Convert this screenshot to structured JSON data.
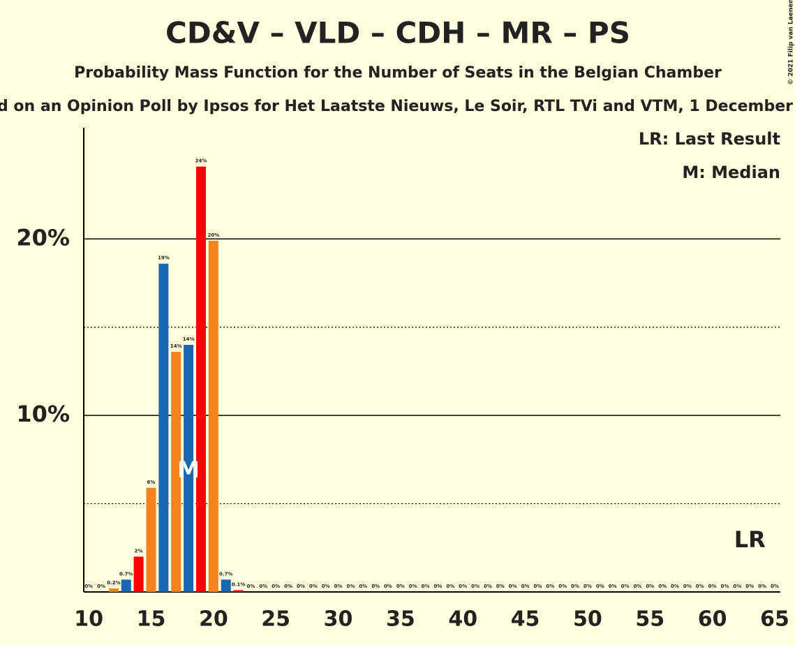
{
  "chart_data": {
    "type": "bar",
    "title": "CD&V – VLD – CDH – MR – PS",
    "subtitle": "Probability Mass Function for the Number of Seats in the Belgian Chamber",
    "source_line": "d on an Opinion Poll by Ipsos for Het Laatste Nieuws, Le Soir, RTL TVi and VTM, 1 December",
    "copyright": "© 2021 Filip van Laenen",
    "legend": [
      "LR: Last Result",
      "M: Median"
    ],
    "x": [
      10,
      11,
      12,
      13,
      14,
      15,
      16,
      17,
      18,
      19,
      20,
      21,
      22,
      23,
      24,
      25,
      26,
      27,
      28,
      29,
      30,
      31,
      32,
      33,
      34,
      35,
      36,
      37,
      38,
      39,
      40,
      41,
      42,
      43,
      44,
      45,
      46,
      47,
      48,
      49,
      50,
      51,
      52,
      53,
      54,
      55,
      56,
      57,
      58,
      59,
      60,
      61,
      62,
      63,
      64,
      65
    ],
    "values": [
      0,
      0,
      0.2,
      0.7,
      2,
      5.9,
      18.6,
      13.6,
      14,
      24.1,
      19.9,
      0.7,
      0.1,
      0,
      0,
      0,
      0,
      0,
      0,
      0,
      0,
      0,
      0,
      0,
      0,
      0,
      0,
      0,
      0,
      0,
      0,
      0,
      0,
      0,
      0,
      0,
      0,
      0,
      0,
      0,
      0,
      0,
      0,
      0,
      0,
      0,
      0,
      0,
      0,
      0,
      0,
      0,
      0,
      0,
      0,
      0
    ],
    "value_labels": [
      "0%",
      "0%",
      "0.2%",
      "0.7%",
      "2%",
      "6%",
      "19%",
      "14%",
      "14%",
      "24%",
      "20%",
      "0.7%",
      "0.1%",
      "0%",
      "0%",
      "0%",
      "0%",
      "0%",
      "0%",
      "0%",
      "0%",
      "0%",
      "0%",
      "0%",
      "0%",
      "0%",
      "0%",
      "0%",
      "0%",
      "0%",
      "0%",
      "0%",
      "0%",
      "0%",
      "0%",
      "0%",
      "0%",
      "0%",
      "0%",
      "0%",
      "0%",
      "0%",
      "0%",
      "0%",
      "0%",
      "0%",
      "0%",
      "0%",
      "0%",
      "0%",
      "0%",
      "0%",
      "0%",
      "0%",
      "0%",
      "0%"
    ],
    "colors": [
      "#1b66b1",
      "#f5821f",
      "#f5821f",
      "#1b66b1",
      "#ff0000",
      "#f5821f",
      "#1b66b1",
      "#f5821f",
      "#1b66b1",
      "#ff0000",
      "#f5821f",
      "#1b66b1",
      "#ff0000",
      "#f5821f",
      "#1b66b1",
      "#ff0000",
      "#f5821f",
      "#1b66b1",
      "#ff0000",
      "#f5821f",
      "#1b66b1",
      "#ff0000",
      "#f5821f",
      "#1b66b1",
      "#ff0000",
      "#f5821f",
      "#1b66b1",
      "#ff0000",
      "#f5821f",
      "#1b66b1",
      "#ff0000",
      "#f5821f",
      "#1b66b1",
      "#ff0000",
      "#f5821f",
      "#1b66b1",
      "#ff0000",
      "#f5821f",
      "#1b66b1",
      "#ff0000",
      "#f5821f",
      "#1b66b1",
      "#ff0000",
      "#f5821f",
      "#1b66b1",
      "#ff0000",
      "#f5821f",
      "#1b66b1",
      "#ff0000",
      "#f5821f",
      "#1b66b1",
      "#ff0000",
      "#f5821f",
      "#1b66b1",
      "#ff0000",
      "#f5821f"
    ],
    "xlim": [
      9.6,
      65.45
    ],
    "xticks": [
      10,
      15,
      20,
      25,
      30,
      35,
      40,
      45,
      50,
      55,
      60,
      65
    ],
    "ylim": [
      0,
      26.3
    ],
    "yticks": [
      {
        "value": 10,
        "label": "10%"
      },
      {
        "value": 20,
        "label": "20%"
      }
    ],
    "minor_yticks": [
      5,
      15
    ],
    "grid": true,
    "median": 18,
    "median_label": "M",
    "last_result": 63,
    "last_result_label": "LR"
  }
}
